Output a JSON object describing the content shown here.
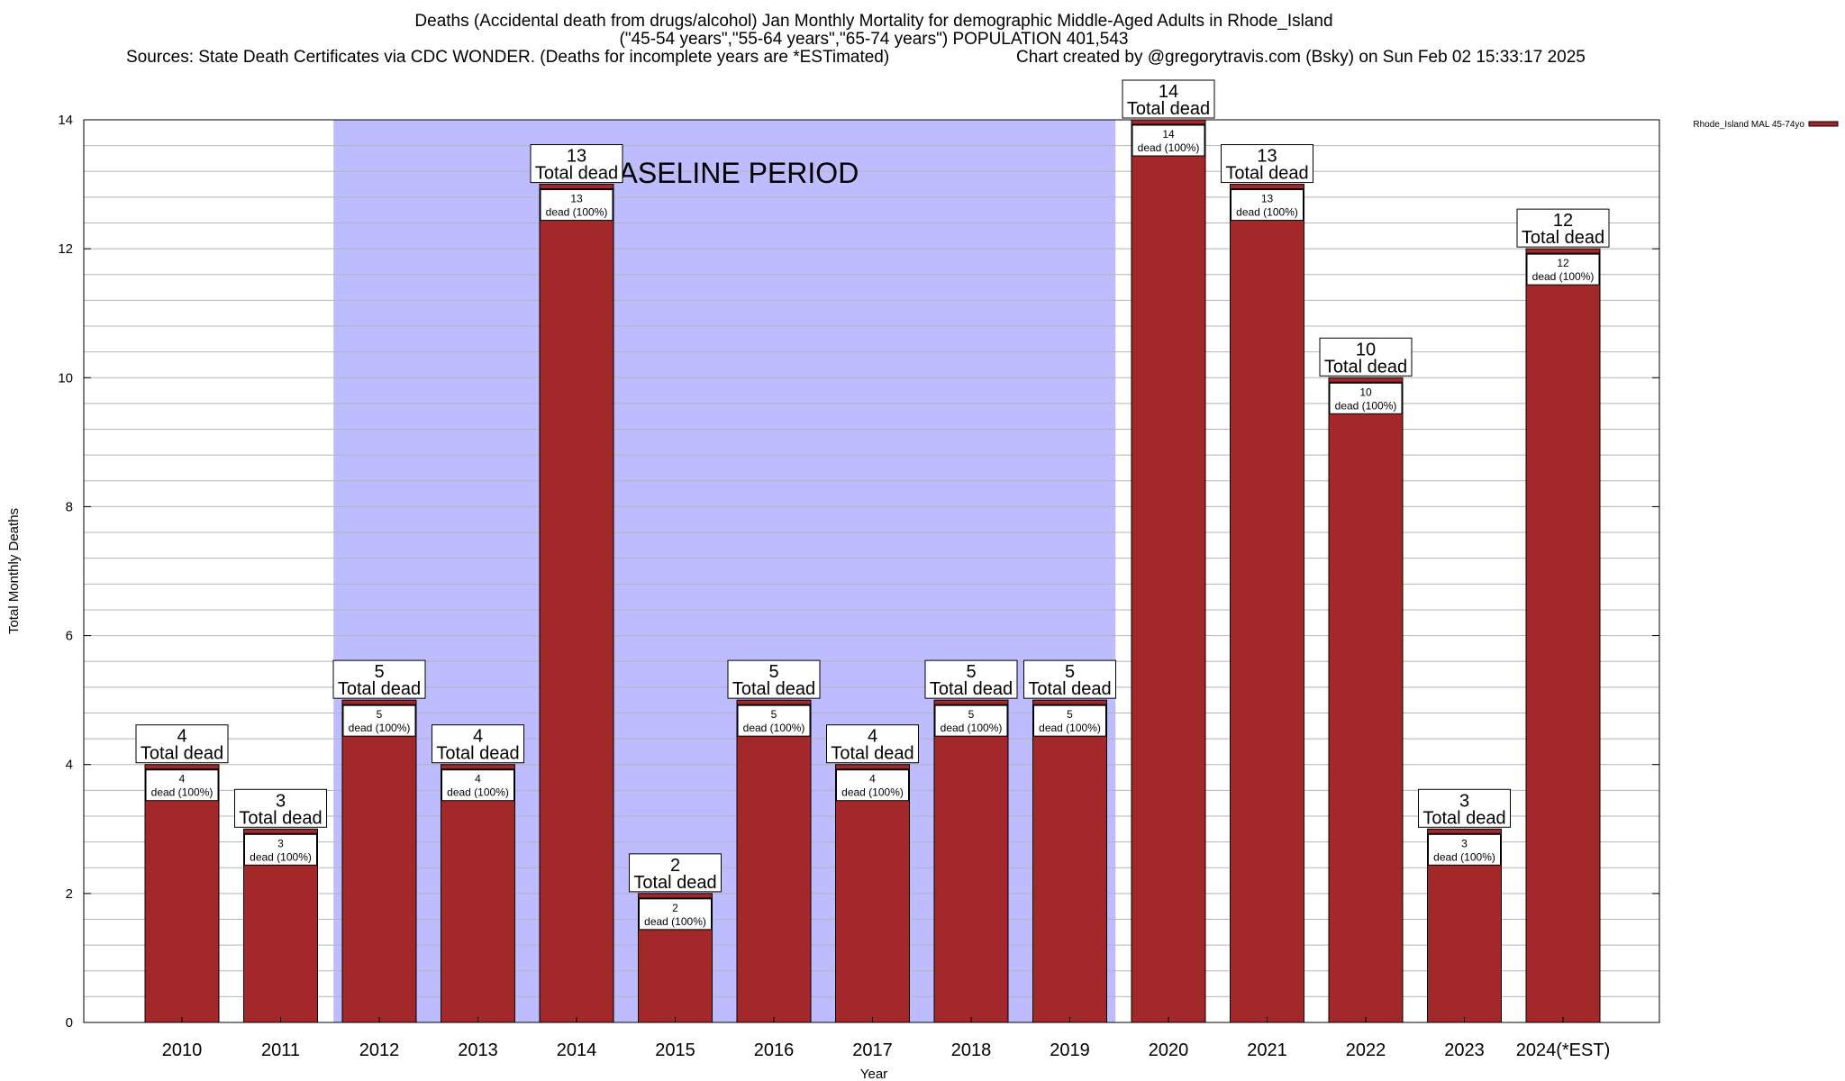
{
  "header": {
    "title_line1": "Deaths (Accidental death from drugs/alcohol) Jan Monthly Mortality for demographic Middle-Aged Adults in Rhode_Island",
    "title_line2": "(\"45-54 years\",\"55-64 years\",\"65-74 years\") POPULATION 401,543",
    "sources": "Sources: State Death Certificates via CDC WONDER. (Deaths for incomplete years are *ESTimated)",
    "credit": "Chart created by @gregorytravis.com (Bsky) on Sun Feb 02 15:33:17 2025"
  },
  "chart_data": {
    "type": "bar",
    "xlabel": "Year",
    "ylabel": "Total Monthly Deaths",
    "ylim": [
      0,
      14
    ],
    "y_ticks": [
      0,
      2,
      4,
      6,
      8,
      10,
      12,
      14
    ],
    "y_minor_step": 0.4,
    "grid": true,
    "legend": {
      "position": "top-right",
      "entries": [
        "Rhode_Island MAL 45-74yo"
      ]
    },
    "baseline": {
      "label": "BASELINE PERIOD",
      "start": "2012",
      "end": "2019",
      "color": "#bcbcff"
    },
    "categories": [
      "2010",
      "2011",
      "2012",
      "2013",
      "2014",
      "2015",
      "2016",
      "2017",
      "2018",
      "2019",
      "2020",
      "2021",
      "2022",
      "2023",
      "2024(*EST)"
    ],
    "series": [
      {
        "name": "Rhode_Island MAL 45-74yo",
        "color": "#a2282a",
        "values": [
          4,
          3,
          5,
          4,
          13,
          2,
          5,
          4,
          5,
          5,
          14,
          13,
          10,
          3,
          12
        ]
      }
    ],
    "total_label_text": "Total dead",
    "inner_label_text": "dead (100%)"
  }
}
